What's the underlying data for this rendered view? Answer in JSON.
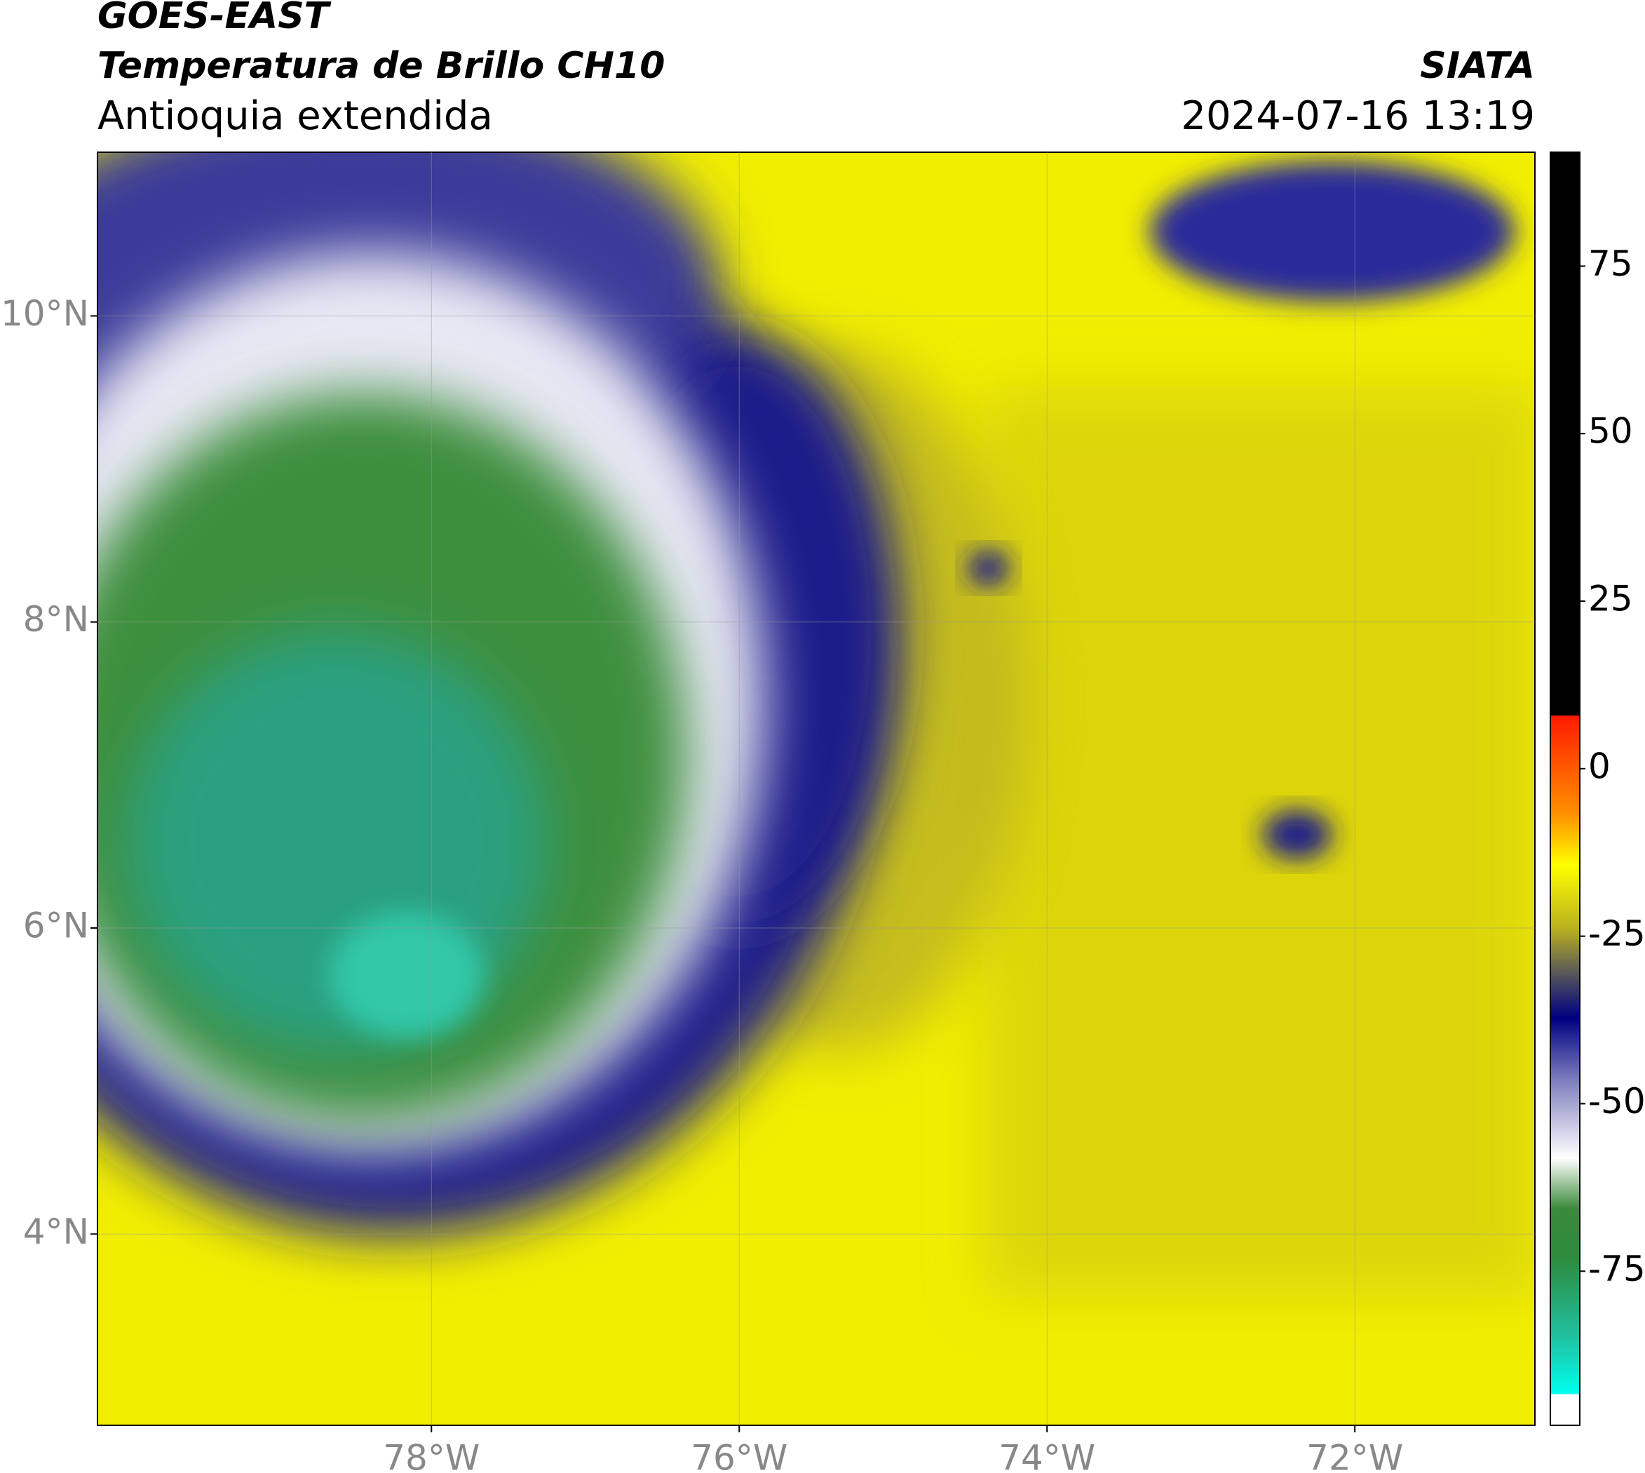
{
  "header": {
    "satellite": "GOES-EAST",
    "product": "Temperatura de Brillo CH10",
    "region": "Antioquia extendida",
    "source": "SIATA",
    "datetime": "2024-07-16 13:19"
  },
  "map": {
    "xlim": [
      -80.17,
      -70.83
    ],
    "ylim": [
      2.75,
      11.07
    ],
    "grid": true,
    "xticks": [
      {
        "value": -78,
        "label": "78°W"
      },
      {
        "value": -76,
        "label": "76°W"
      },
      {
        "value": -74,
        "label": "74°W"
      },
      {
        "value": -72,
        "label": "72°W"
      }
    ],
    "yticks": [
      {
        "value": 10,
        "label": "10°N"
      },
      {
        "value": 8,
        "label": "8°N"
      },
      {
        "value": 6,
        "label": "6°N"
      },
      {
        "value": 4,
        "label": "4°N"
      }
    ]
  },
  "colorbar": {
    "clim": [
      -98,
      92
    ],
    "ticks": [
      75,
      50,
      25,
      0,
      -25,
      -50,
      -75
    ]
  }
}
